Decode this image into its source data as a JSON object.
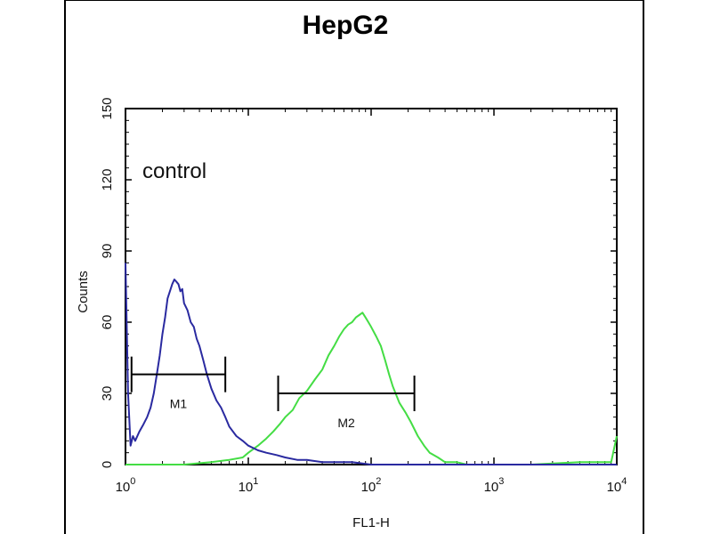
{
  "chart_data": {
    "type": "line",
    "title": "HepG2",
    "annotation": "control",
    "xlabel": "FL1-H",
    "ylabel": "Counts",
    "x_scale": "log",
    "xlim": [
      1,
      10000
    ],
    "ylim": [
      0,
      150
    ],
    "x_ticks": [
      {
        "base": "10",
        "exp": "0",
        "value": 1
      },
      {
        "base": "10",
        "exp": "1",
        "value": 10
      },
      {
        "base": "10",
        "exp": "2",
        "value": 100
      },
      {
        "base": "10",
        "exp": "3",
        "value": 1000
      },
      {
        "base": "10",
        "exp": "4",
        "value": 10000
      }
    ],
    "y_ticks": [
      "0",
      "30",
      "60",
      "90",
      "120",
      "150"
    ],
    "grid": false,
    "series": [
      {
        "color": "#2a2aa0",
        "x": [
          1.0,
          1.05,
          1.1,
          1.15,
          1.2,
          1.3,
          1.4,
          1.5,
          1.6,
          1.7,
          1.8,
          1.9,
          2.0,
          2.1,
          2.2,
          2.3,
          2.4,
          2.5,
          2.6,
          2.7,
          2.8,
          2.9,
          3.0,
          3.2,
          3.4,
          3.6,
          3.8,
          4.0,
          4.3,
          4.6,
          5.0,
          5.5,
          6.0,
          6.5,
          7.0,
          8.0,
          9.0,
          10.0,
          12.0,
          14.0,
          17.0,
          20.0,
          25.0,
          30.0,
          40.0,
          50.0,
          70.0,
          100.0,
          150.0,
          200.0,
          300.0,
          500.0,
          1000.0,
          3000.0,
          10000.0
        ],
        "y": [
          85,
          30,
          8,
          12,
          10,
          14,
          17,
          20,
          24,
          30,
          38,
          46,
          55,
          62,
          70,
          73,
          76,
          78,
          77,
          76,
          73,
          74,
          68,
          65,
          60,
          58,
          53,
          50,
          44,
          38,
          32,
          27,
          24,
          20,
          16,
          12,
          10,
          8,
          6,
          5,
          4,
          3,
          2,
          2,
          1,
          1,
          1,
          0,
          0,
          0,
          0,
          0,
          0,
          0,
          0
        ]
      },
      {
        "color": "#44dd44",
        "x": [
          1.0,
          1.5,
          2.0,
          3.0,
          5.0,
          7.0,
          9.0,
          10.0,
          12.0,
          14.0,
          16.0,
          18.0,
          20.0,
          23.0,
          26.0,
          30.0,
          35.0,
          40.0,
          45.0,
          50.0,
          55.0,
          60.0,
          65.0,
          70.0,
          75.0,
          80.0,
          85.0,
          90.0,
          95.0,
          100.0,
          110.0,
          120.0,
          130.0,
          140.0,
          150.0,
          170.0,
          190.0,
          210.0,
          240.0,
          270.0,
          300.0,
          350.0,
          400.0,
          500.0,
          600.0,
          800.0,
          1000.0,
          2000.0,
          5000.0,
          9000.0,
          10000.0
        ],
        "y": [
          0,
          0,
          0,
          0,
          1,
          2,
          3,
          5,
          8,
          11,
          14,
          17,
          20,
          23,
          28,
          31,
          36,
          40,
          46,
          50,
          54,
          57,
          59,
          60,
          62,
          63,
          64,
          62,
          60,
          58,
          54,
          50,
          44,
          38,
          33,
          26,
          22,
          18,
          12,
          8,
          5,
          3,
          1,
          1,
          0,
          0,
          0,
          0,
          1,
          1,
          12
        ]
      }
    ],
    "markers": [
      {
        "label": "M1",
        "x_start": 1.12,
        "x_end": 6.5,
        "y": 38
      },
      {
        "label": "M2",
        "x_start": 17.5,
        "x_end": 225,
        "y": 30
      }
    ]
  }
}
